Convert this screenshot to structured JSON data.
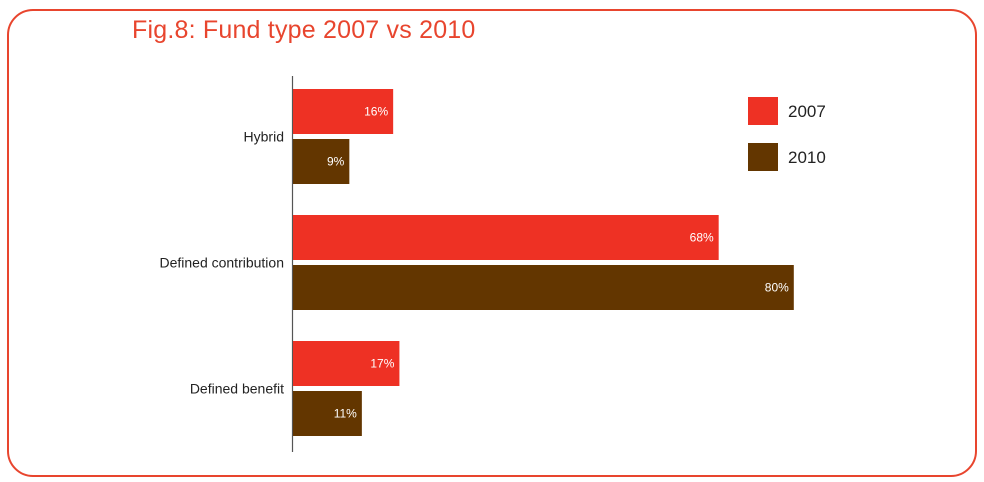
{
  "chart_data": {
    "type": "bar",
    "orientation": "horizontal",
    "title": "Fig.8: Fund type 2007 vs 2010",
    "categories": [
      "Hybrid",
      "Defined contribution",
      "Defined benefit"
    ],
    "series": [
      {
        "name": "2007",
        "values": [
          16,
          68,
          17
        ],
        "labels": [
          "16%",
          "68%",
          "17%"
        ],
        "color": "#ee3124"
      },
      {
        "name": "2010",
        "values": [
          9,
          80,
          11
        ],
        "labels": [
          "9%",
          "80%",
          "11%"
        ],
        "color": "#633600"
      }
    ],
    "xlim": [
      0,
      100
    ],
    "xlabel": "",
    "ylabel": "",
    "grid": false,
    "legend_position": "top-right"
  },
  "colors": {
    "frame": "#e8452e",
    "title": "#e8452e",
    "axis": "#555555"
  }
}
